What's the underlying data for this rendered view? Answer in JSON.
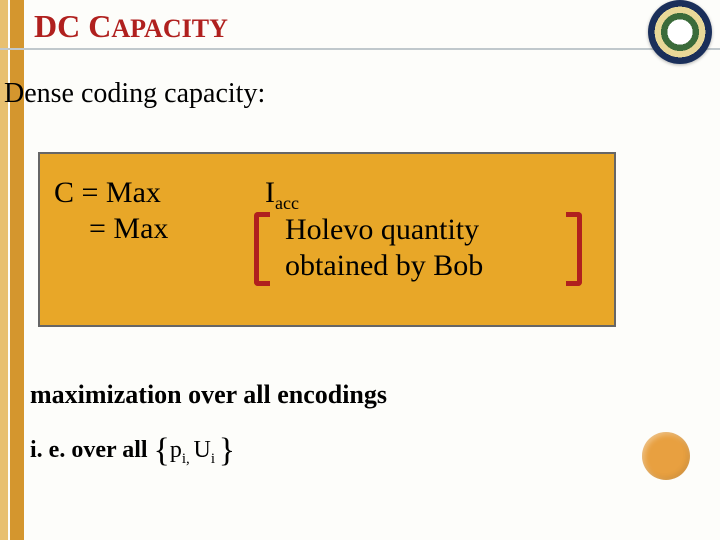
{
  "title_main": "DC C",
  "title_sc": "APACITY",
  "subtitle": "Dense coding capacity:",
  "formula": {
    "line1_left": "C =  Max",
    "line2_left": "=   Max",
    "right1_I": "I",
    "right1_sub": "acc",
    "right2a": "Holevo quantity",
    "right2b": " obtained by Bob"
  },
  "bottom": {
    "line1": "maximization over all encodings",
    "line2_prefix": "i. e. over all  ",
    "brace_open": "{",
    "set_p": "p",
    "set_p_sub": "i, ",
    "set_u": "U",
    "set_u_sub": "i ",
    "brace_close": "}"
  },
  "colors": {
    "accent_red": "#b0201e",
    "box_bg": "#e8a728",
    "sidebar1": "#e8c070",
    "sidebar2": "#d4962e"
  }
}
